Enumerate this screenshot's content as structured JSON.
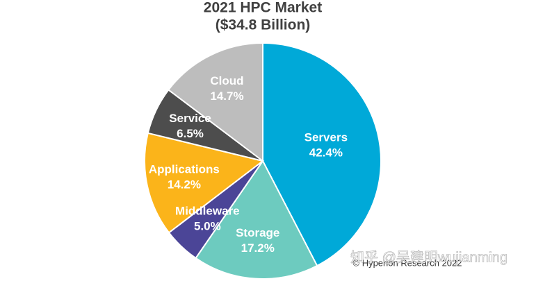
{
  "chart_data": {
    "type": "pie",
    "title": "2021 HPC Market",
    "subtitle": "($34.8 Billion)",
    "categories": [
      "Servers",
      "Storage",
      "Middleware",
      "Applications",
      "Service",
      "Cloud"
    ],
    "values": [
      42.4,
      17.2,
      5.0,
      14.2,
      6.5,
      14.7
    ],
    "value_labels": [
      "42.4%",
      "17.2%",
      "5.0%",
      "14.2%",
      "6.5%",
      "14.7%"
    ],
    "colors": [
      "#00a9d8",
      "#6dcbbf",
      "#4b4597",
      "#fbb41a",
      "#4d4d4d",
      "#bdbdbd"
    ],
    "source": "© Hyperion Research 2022"
  },
  "watermark": "知乎 @吴建明wujianming"
}
